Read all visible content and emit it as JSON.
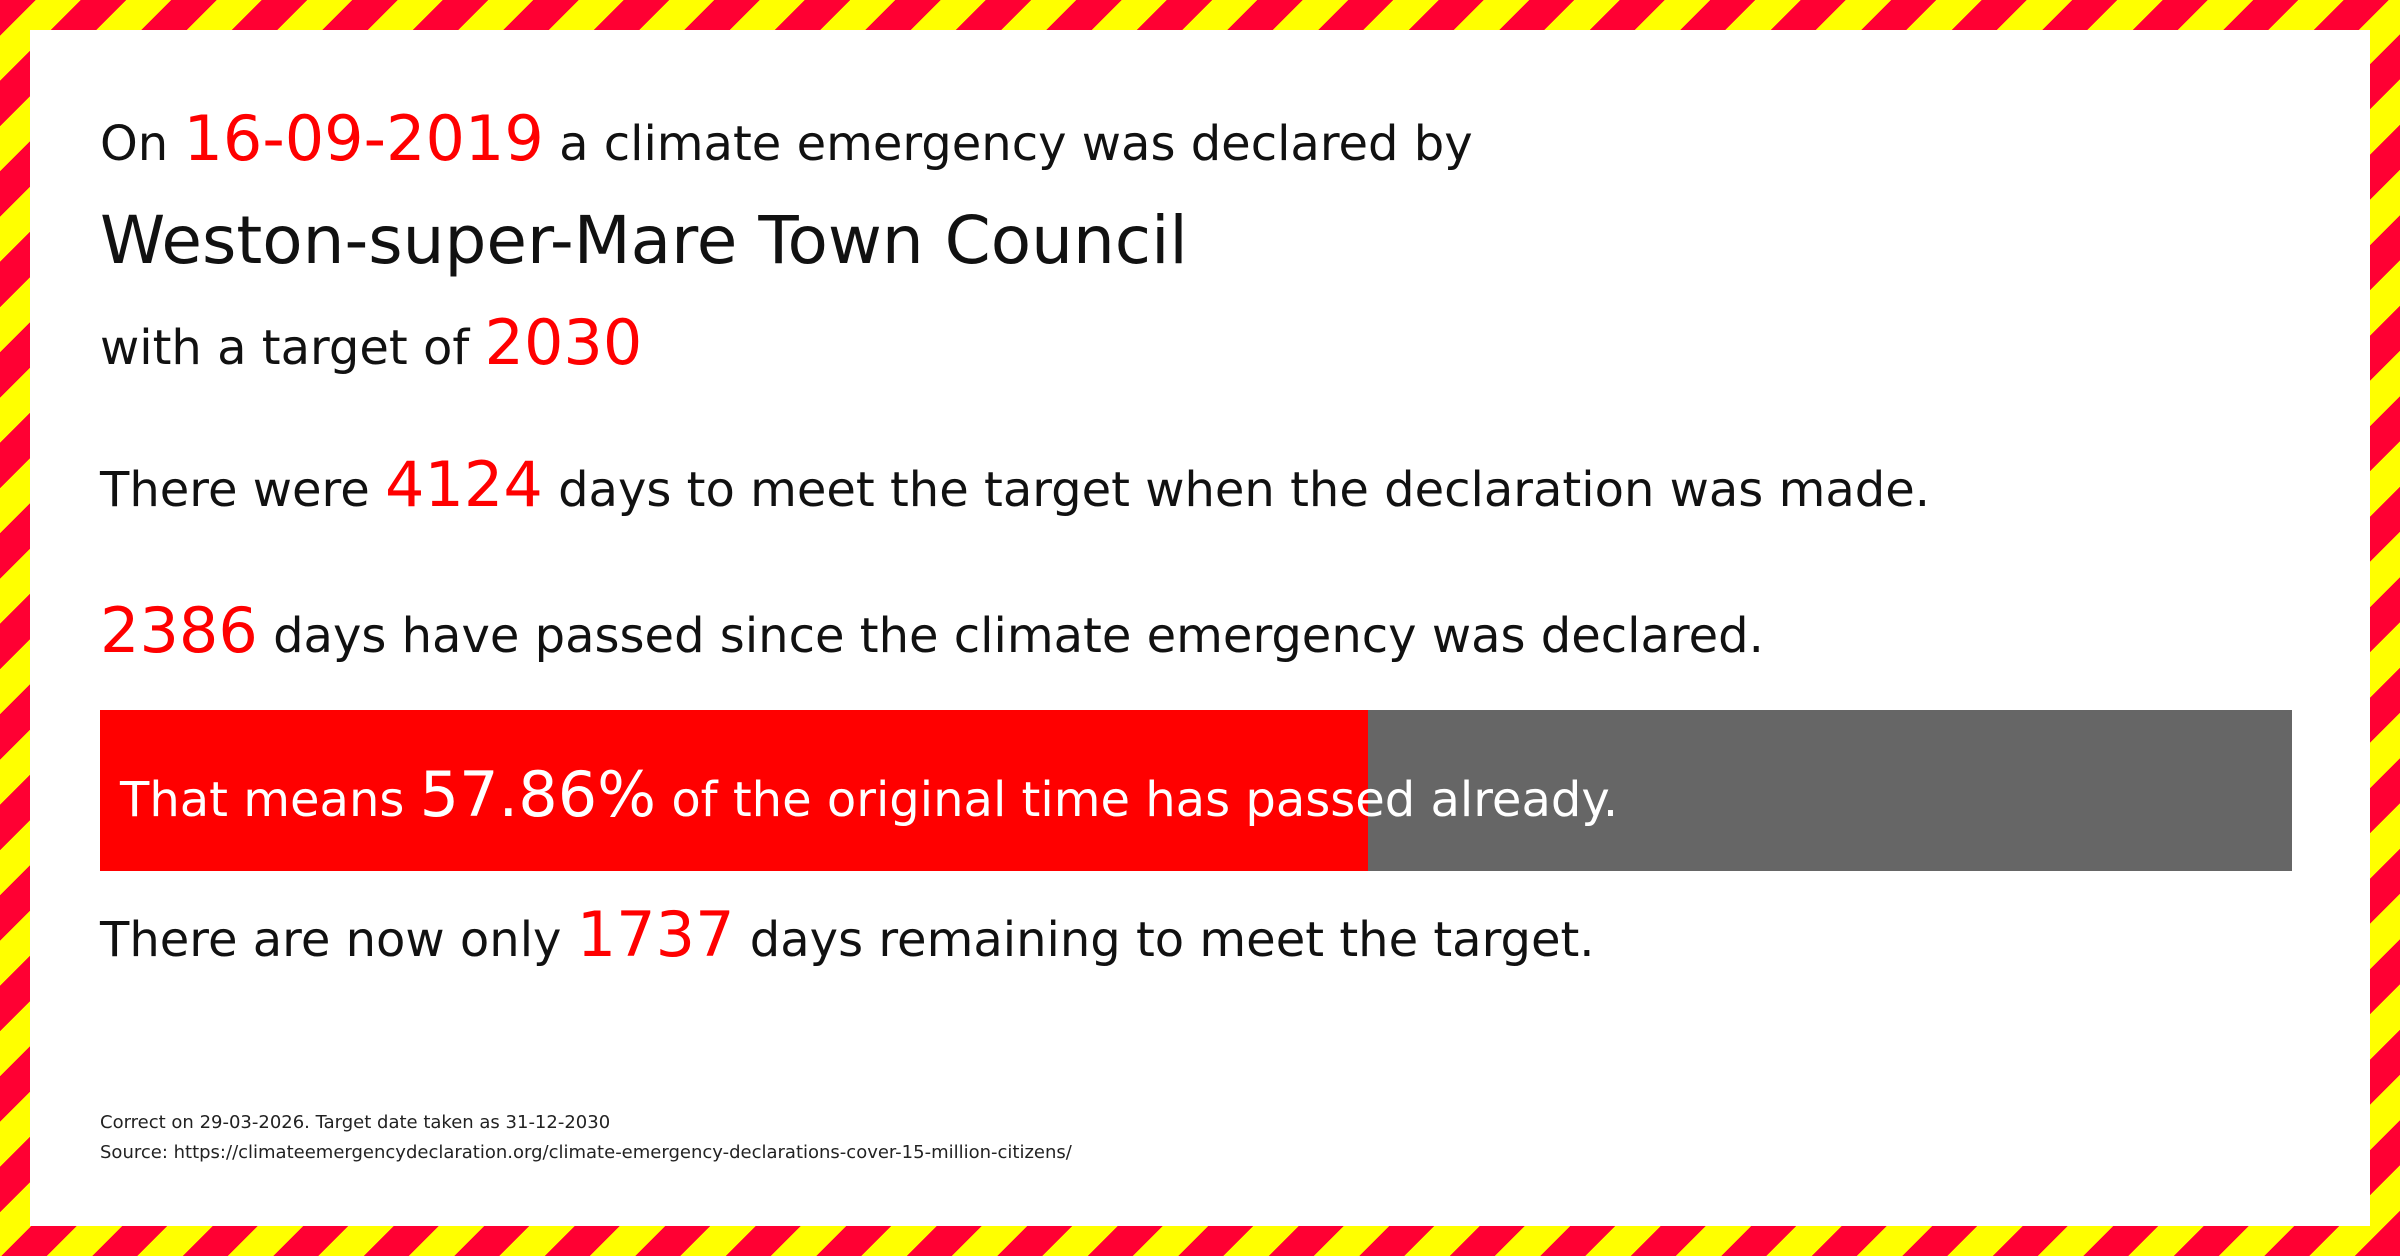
{
  "line1": {
    "prefix": "On",
    "date": "16-09-2019",
    "suffix": "a climate emergency was declared by"
  },
  "council": "Weston-super-Mare Town Council",
  "target": {
    "prefix": "with a target of",
    "year": "2030"
  },
  "total": {
    "prefix": "There were",
    "days": "4124",
    "suffix": "days to meet the target when the declaration was made."
  },
  "passed": {
    "days": "2386",
    "suffix": "days have passed since the climate emergency was declared."
  },
  "progress": {
    "prefix": "That means",
    "percent": "57.86%",
    "suffix": "of the original time has passed already.",
    "value": 57.86
  },
  "remaining": {
    "prefix": "There are now only",
    "days": "1737",
    "suffix": "days remaining to meet the target."
  },
  "footer": {
    "correct": "Correct on 29-03-2026. Target date taken as 31-12-2030",
    "source": "Source: https://climateemergencydeclaration.org/climate-emergency-declarations-cover-15-million-citizens/"
  },
  "colors": {
    "accent": "#ff0000",
    "bar_bg": "#666666",
    "stripe_red": "#ff0033",
    "stripe_yellow": "#ffff00"
  }
}
